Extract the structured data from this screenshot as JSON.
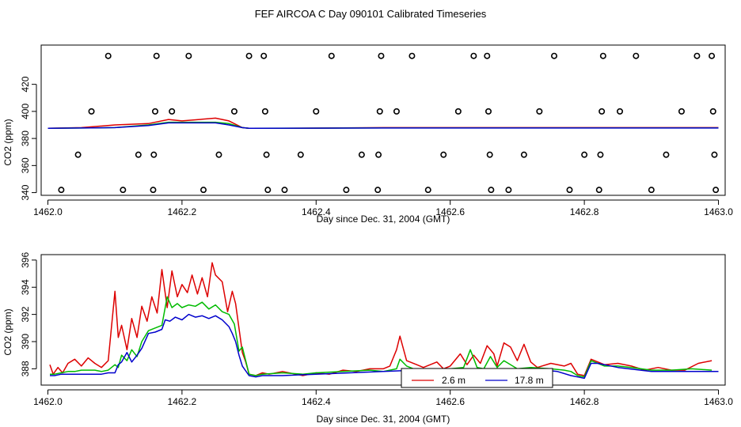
{
  "title": "FEF AIRCOA C  Day 090101  Calibrated Timeseries",
  "chart_data": [
    {
      "type": "scatter+line",
      "xlabel": "Day since Dec. 31, 2004 (GMT)",
      "ylabel": "CO2 (ppm)",
      "xlim": [
        1461.99,
        1463.01
      ],
      "ylim": [
        338,
        449
      ],
      "xticks": [
        1462.0,
        1462.2,
        1462.4,
        1462.6,
        1462.8,
        1463.0
      ],
      "xtick_labels": [
        "1462.0",
        "1462.2",
        "1462.4",
        "1462.6",
        "1462.8",
        "1463.0"
      ],
      "yticks": [
        340,
        360,
        380,
        400,
        420
      ],
      "ytick_labels": [
        "340",
        "360",
        "380",
        "400",
        "420"
      ],
      "calibration_points": [
        {
          "x": 1462.02,
          "y": 342
        },
        {
          "x": 1462.045,
          "y": 368
        },
        {
          "x": 1462.065,
          "y": 400
        },
        {
          "x": 1462.09,
          "y": 441
        },
        {
          "x": 1462.112,
          "y": 342
        },
        {
          "x": 1462.135,
          "y": 368
        },
        {
          "x": 1462.157,
          "y": 342
        },
        {
          "x": 1462.158,
          "y": 368
        },
        {
          "x": 1462.16,
          "y": 400
        },
        {
          "x": 1462.162,
          "y": 441
        },
        {
          "x": 1462.185,
          "y": 400
        },
        {
          "x": 1462.21,
          "y": 441
        },
        {
          "x": 1462.232,
          "y": 342
        },
        {
          "x": 1462.255,
          "y": 368
        },
        {
          "x": 1462.278,
          "y": 400
        },
        {
          "x": 1462.3,
          "y": 441
        },
        {
          "x": 1462.322,
          "y": 441
        },
        {
          "x": 1462.324,
          "y": 400
        },
        {
          "x": 1462.326,
          "y": 368
        },
        {
          "x": 1462.328,
          "y": 342
        },
        {
          "x": 1462.353,
          "y": 342
        },
        {
          "x": 1462.377,
          "y": 368
        },
        {
          "x": 1462.4,
          "y": 400
        },
        {
          "x": 1462.423,
          "y": 441
        },
        {
          "x": 1462.445,
          "y": 342
        },
        {
          "x": 1462.468,
          "y": 368
        },
        {
          "x": 1462.492,
          "y": 342
        },
        {
          "x": 1462.493,
          "y": 368
        },
        {
          "x": 1462.495,
          "y": 400
        },
        {
          "x": 1462.497,
          "y": 441
        },
        {
          "x": 1462.52,
          "y": 400
        },
        {
          "x": 1462.543,
          "y": 441
        },
        {
          "x": 1462.567,
          "y": 342
        },
        {
          "x": 1462.59,
          "y": 368
        },
        {
          "x": 1462.612,
          "y": 400
        },
        {
          "x": 1462.635,
          "y": 441
        },
        {
          "x": 1462.655,
          "y": 441
        },
        {
          "x": 1462.657,
          "y": 400
        },
        {
          "x": 1462.659,
          "y": 368
        },
        {
          "x": 1462.661,
          "y": 342
        },
        {
          "x": 1462.687,
          "y": 342
        },
        {
          "x": 1462.71,
          "y": 368
        },
        {
          "x": 1462.733,
          "y": 400
        },
        {
          "x": 1462.755,
          "y": 441
        },
        {
          "x": 1462.778,
          "y": 342
        },
        {
          "x": 1462.8,
          "y": 368
        },
        {
          "x": 1462.822,
          "y": 342
        },
        {
          "x": 1462.824,
          "y": 368
        },
        {
          "x": 1462.826,
          "y": 400
        },
        {
          "x": 1462.828,
          "y": 441
        },
        {
          "x": 1462.853,
          "y": 400
        },
        {
          "x": 1462.877,
          "y": 441
        },
        {
          "x": 1462.9,
          "y": 342
        },
        {
          "x": 1462.922,
          "y": 368
        },
        {
          "x": 1462.945,
          "y": 400
        },
        {
          "x": 1462.968,
          "y": 441
        },
        {
          "x": 1462.99,
          "y": 441
        },
        {
          "x": 1462.992,
          "y": 400
        },
        {
          "x": 1462.994,
          "y": 368
        },
        {
          "x": 1462.996,
          "y": 342
        }
      ],
      "series": [
        {
          "color": "#dd0000",
          "x": [
            1462.0,
            1462.05,
            1462.1,
            1462.15,
            1462.18,
            1462.2,
            1462.25,
            1462.27,
            1462.29,
            1462.3,
            1462.35,
            1462.5,
            1462.52,
            1462.6,
            1462.7,
            1462.9,
            1463.0
          ],
          "y": [
            387.5,
            388,
            390,
            391,
            394,
            393,
            395,
            393,
            388,
            387.5,
            387.5,
            388,
            388,
            388,
            388,
            388,
            388
          ]
        },
        {
          "color": "#00bb00",
          "x": [
            1462.0,
            1462.1,
            1462.15,
            1462.18,
            1462.2,
            1462.25,
            1462.27,
            1462.29,
            1462.3,
            1462.5,
            1462.7,
            1463.0
          ],
          "y": [
            387.5,
            388,
            390,
            392,
            392,
            392,
            391,
            388,
            387.5,
            387.8,
            387.8,
            387.8
          ]
        },
        {
          "color": "#0000cc",
          "x": [
            1462.0,
            1462.1,
            1462.15,
            1462.18,
            1462.2,
            1462.25,
            1462.27,
            1462.29,
            1462.3,
            1462.5,
            1462.7,
            1463.0
          ],
          "y": [
            387.5,
            388,
            389.5,
            391.5,
            391.5,
            391.5,
            390,
            388,
            387.5,
            387.7,
            387.7,
            387.7
          ]
        }
      ]
    },
    {
      "type": "line",
      "xlabel": "Day since Dec. 31, 2004 (GMT)",
      "ylabel": "CO2 (ppm)",
      "xlim": [
        1461.99,
        1463.01
      ],
      "ylim": [
        386.8,
        396.4
      ],
      "xticks": [
        1462.0,
        1462.2,
        1462.4,
        1462.6,
        1462.8,
        1463.0
      ],
      "xtick_labels": [
        "1462.0",
        "1462.2",
        "1462.4",
        "1462.6",
        "1462.8",
        "1463.0"
      ],
      "yticks": [
        388,
        390,
        392,
        394,
        396
      ],
      "ytick_labels": [
        "388",
        "390",
        "392",
        "394",
        "396"
      ],
      "legend": {
        "position": "bottom-center",
        "entries": [
          {
            "name": "2.6 m",
            "color": "#dd0000"
          },
          {
            "name": "17.8 m",
            "color": "#0000cc"
          }
        ]
      },
      "series": [
        {
          "name": "2.6 m",
          "color": "#dd0000",
          "x": [
            1462.003,
            1462.008,
            1462.015,
            1462.022,
            1462.03,
            1462.04,
            1462.05,
            1462.06,
            1462.07,
            1462.08,
            1462.09,
            1462.1,
            1462.105,
            1462.11,
            1462.118,
            1462.125,
            1462.133,
            1462.14,
            1462.148,
            1462.155,
            1462.163,
            1462.17,
            1462.178,
            1462.185,
            1462.193,
            1462.2,
            1462.208,
            1462.215,
            1462.223,
            1462.23,
            1462.238,
            1462.245,
            1462.25,
            1462.26,
            1462.268,
            1462.275,
            1462.28,
            1462.29,
            1462.295,
            1462.3,
            1462.31,
            1462.32,
            1462.33,
            1462.35,
            1462.38,
            1462.4,
            1462.42,
            1462.44,
            1462.46,
            1462.48,
            1462.5,
            1462.51,
            1462.52,
            1462.525,
            1462.535,
            1462.55,
            1462.56,
            1462.58,
            1462.59,
            1462.6,
            1462.615,
            1462.625,
            1462.635,
            1462.645,
            1462.655,
            1462.665,
            1462.67,
            1462.68,
            1462.69,
            1462.7,
            1462.71,
            1462.72,
            1462.73,
            1462.75,
            1462.77,
            1462.78,
            1462.79,
            1462.8,
            1462.81,
            1462.83,
            1462.85,
            1462.87,
            1462.89,
            1462.91,
            1462.93,
            1462.95,
            1462.97,
            1462.99
          ],
          "y": [
            388.3,
            387.6,
            388.1,
            387.7,
            388.4,
            388.7,
            388.2,
            388.8,
            388.4,
            388.1,
            388.6,
            393.7,
            390.3,
            391.2,
            389.4,
            391.7,
            390.3,
            392.6,
            391.5,
            393.3,
            392.1,
            395.3,
            392.5,
            395.2,
            393.3,
            394.2,
            393.6,
            394.9,
            393.5,
            394.7,
            393.3,
            395.8,
            394.9,
            394.4,
            392.2,
            393.7,
            392.8,
            389.2,
            388.5,
            387.6,
            387.5,
            387.7,
            387.6,
            387.8,
            387.5,
            387.7,
            387.6,
            387.9,
            387.8,
            388.0,
            388.0,
            388.2,
            389.4,
            390.4,
            388.6,
            388.3,
            388.1,
            388.5,
            388.0,
            388.2,
            389.1,
            388.3,
            389.0,
            388.4,
            389.7,
            389.1,
            388.2,
            389.9,
            389.6,
            388.6,
            389.8,
            388.5,
            388.1,
            388.4,
            388.2,
            388.4,
            387.6,
            387.5,
            388.7,
            388.3,
            388.4,
            388.2,
            387.9,
            388.1,
            387.9,
            387.9,
            388.4,
            388.6
          ]
        },
        {
          "name": "",
          "color": "#00bb00",
          "x": [
            1462.003,
            1462.01,
            1462.02,
            1462.03,
            1462.04,
            1462.05,
            1462.06,
            1462.07,
            1462.08,
            1462.09,
            1462.1,
            1462.105,
            1462.11,
            1462.118,
            1462.125,
            1462.133,
            1462.14,
            1462.15,
            1462.16,
            1462.17,
            1462.178,
            1462.185,
            1462.193,
            1462.2,
            1462.21,
            1462.22,
            1462.23,
            1462.24,
            1462.25,
            1462.26,
            1462.27,
            1462.278,
            1462.285,
            1462.29,
            1462.3,
            1462.31,
            1462.32,
            1462.35,
            1462.38,
            1462.4,
            1462.44,
            1462.48,
            1462.5,
            1462.52,
            1462.525,
            1462.535,
            1462.55,
            1462.58,
            1462.6,
            1462.62,
            1462.63,
            1462.64,
            1462.65,
            1462.66,
            1462.67,
            1462.68,
            1462.7,
            1462.72,
            1462.75,
            1462.77,
            1462.78,
            1462.79,
            1462.8,
            1462.81,
            1462.83,
            1462.85,
            1462.87,
            1462.9,
            1462.93,
            1462.96,
            1462.99
          ],
          "y": [
            387.6,
            387.6,
            387.7,
            387.8,
            387.8,
            387.9,
            387.9,
            387.9,
            387.8,
            387.9,
            388.3,
            388.1,
            389.0,
            388.6,
            389.4,
            388.9,
            390.0,
            390.8,
            391.0,
            391.2,
            393.3,
            392.5,
            392.8,
            392.5,
            392.7,
            392.6,
            392.9,
            392.4,
            392.7,
            392.2,
            392.0,
            391.3,
            389.3,
            389.6,
            387.6,
            387.5,
            387.6,
            387.7,
            387.6,
            387.7,
            387.8,
            387.9,
            387.8,
            388.0,
            388.7,
            388.2,
            387.9,
            387.9,
            388.0,
            388.1,
            389.4,
            388.1,
            388.0,
            388.9,
            388.1,
            388.6,
            388.0,
            388.1,
            388.0,
            387.9,
            387.8,
            387.5,
            387.4,
            388.6,
            388.2,
            388.2,
            388.1,
            387.9,
            387.9,
            388.0,
            387.9
          ]
        },
        {
          "name": "17.8 m",
          "color": "#0000cc",
          "x": [
            1462.003,
            1462.01,
            1462.02,
            1462.03,
            1462.04,
            1462.05,
            1462.06,
            1462.07,
            1462.08,
            1462.09,
            1462.1,
            1462.105,
            1462.11,
            1462.118,
            1462.125,
            1462.133,
            1462.14,
            1462.15,
            1462.16,
            1462.17,
            1462.175,
            1462.182,
            1462.19,
            1462.2,
            1462.21,
            1462.22,
            1462.23,
            1462.24,
            1462.25,
            1462.26,
            1462.27,
            1462.275,
            1462.28,
            1462.285,
            1462.29,
            1462.3,
            1462.31,
            1462.32,
            1462.35,
            1462.4,
            1462.45,
            1462.5,
            1462.55,
            1462.6,
            1462.65,
            1462.7,
            1462.74,
            1462.76,
            1462.78,
            1462.79,
            1462.8,
            1462.81,
            1462.82,
            1462.85,
            1462.9,
            1462.93,
            1462.96,
            1463.0
          ],
          "y": [
            387.5,
            387.5,
            387.6,
            387.6,
            387.6,
            387.6,
            387.6,
            387.6,
            387.6,
            387.7,
            387.7,
            388.3,
            388.5,
            389.2,
            388.5,
            389.0,
            389.5,
            390.6,
            390.7,
            390.9,
            391.6,
            391.5,
            391.8,
            391.6,
            392.0,
            391.8,
            391.9,
            391.7,
            391.9,
            391.6,
            391.1,
            390.6,
            390.0,
            389.0,
            388.2,
            387.5,
            387.4,
            387.5,
            387.5,
            387.6,
            387.7,
            387.8,
            387.9,
            387.9,
            387.9,
            387.9,
            387.9,
            387.8,
            387.5,
            387.4,
            387.3,
            388.4,
            388.4,
            388.1,
            387.8,
            387.8,
            387.8,
            387.8
          ]
        }
      ]
    }
  ]
}
